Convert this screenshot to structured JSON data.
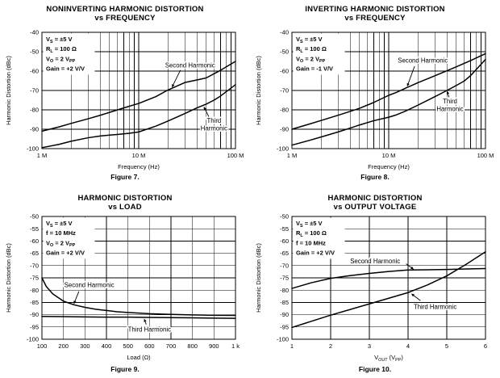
{
  "page": {
    "background": "#ffffff",
    "text_color": "#000000",
    "line_color": "#000000"
  },
  "chart_data": [
    {
      "type": "line",
      "title1": "NONINVERTING HARMONIC DISTORTION",
      "title2": "vs FREQUENCY",
      "caption": "Figure 7.",
      "ylabel": "Harmonic Distortion (dBc)",
      "xlabel": [
        {
          "t": "Frequency (Hz)"
        }
      ],
      "x_scale": "log",
      "x_min": 1000000.0,
      "x_max": 100000000.0,
      "x_ticks": [
        {
          "v": 1000000.0,
          "label": "1 M"
        },
        {
          "v": 10000000.0,
          "label": "10 M"
        },
        {
          "v": 100000000.0,
          "label": "100 M"
        }
      ],
      "y_min": -100,
      "y_max": -40,
      "y_ticks": [
        -40,
        -50,
        -60,
        -70,
        -80,
        -90,
        -100
      ],
      "grid": true,
      "conditions": [
        [
          {
            "t": "V"
          },
          {
            "t": "S",
            "sub": true
          },
          {
            "t": " = ±5 V"
          }
        ],
        [
          {
            "t": "R"
          },
          {
            "t": "L",
            "sub": true
          },
          {
            "t": " = 100 Ω"
          }
        ],
        [
          {
            "t": "V"
          },
          {
            "t": "O",
            "sub": true
          },
          {
            "t": " = 2 V"
          },
          {
            "t": "PP",
            "sub": true
          }
        ],
        [
          {
            "t": "Gain = +2 V/V"
          }
        ]
      ],
      "series": [
        {
          "name": "Second Harmonic",
          "points": [
            [
              1000000.0,
              -91
            ],
            [
              1500000.0,
              -88.8
            ],
            [
              2000000.0,
              -87
            ],
            [
              3000000.0,
              -84.6
            ],
            [
              4000000.0,
              -82.8
            ],
            [
              5000000.0,
              -81.3
            ],
            [
              7000000.0,
              -79
            ],
            [
              10000000.0,
              -76.7
            ],
            [
              15000000.0,
              -73.2
            ],
            [
              20000000.0,
              -69.8
            ],
            [
              30000000.0,
              -65.9
            ],
            [
              40000000.0,
              -64.6
            ],
            [
              50000000.0,
              -63.5
            ],
            [
              70000000.0,
              -59.6
            ],
            [
              100000000.0,
              -55
            ]
          ]
        },
        {
          "name": "Third Harmonic",
          "points": [
            [
              1000000.0,
              -99.5
            ],
            [
              1500000.0,
              -97.8
            ],
            [
              2000000.0,
              -96.2
            ],
            [
              3000000.0,
              -94.4
            ],
            [
              4000000.0,
              -93.5
            ],
            [
              5000000.0,
              -93
            ],
            [
              6000000.0,
              -92.7
            ],
            [
              8000000.0,
              -92.1
            ],
            [
              10000000.0,
              -91.4
            ],
            [
              15000000.0,
              -88.4
            ],
            [
              20000000.0,
              -85.8
            ],
            [
              30000000.0,
              -81.9
            ],
            [
              40000000.0,
              -79
            ],
            [
              50000000.0,
              -77
            ],
            [
              60000000.0,
              -75
            ],
            [
              70000000.0,
              -72.9
            ],
            [
              100000000.0,
              -67
            ]
          ]
        }
      ],
      "labels": [
        {
          "lines": [
            "Second Harmonic"
          ],
          "x": 34000000.0,
          "y": -57,
          "arrow": {
            "x1": 27000000.0,
            "y1": -59.5,
            "x2": 22000000.0,
            "y2": -68.5
          }
        },
        {
          "lines": [
            "Third",
            "Harmonic"
          ],
          "x": 60000000.0,
          "y": -87.5,
          "arrow": {
            "x1": 53000000.0,
            "y1": -83.5,
            "x2": 47000000.0,
            "y2": -78.3
          }
        }
      ]
    },
    {
      "type": "line",
      "title1": "INVERTING HARMONIC DISTORTION",
      "title2": "vs FREQUENCY",
      "caption": "Figure 8.",
      "ylabel": "Harmonic Distortion (dBc)",
      "xlabel": [
        {
          "t": "Frequency (Hz)"
        }
      ],
      "x_scale": "log",
      "x_min": 1000000.0,
      "x_max": 100000000.0,
      "x_ticks": [
        {
          "v": 1000000.0,
          "label": "1 M"
        },
        {
          "v": 10000000.0,
          "label": "10 M"
        },
        {
          "v": 100000000.0,
          "label": "100 M"
        }
      ],
      "y_min": -100,
      "y_max": -40,
      "y_ticks": [
        -40,
        -50,
        -60,
        -70,
        -80,
        -90,
        -100
      ],
      "grid": true,
      "conditions": [
        [
          {
            "t": "V"
          },
          {
            "t": "S",
            "sub": true
          },
          {
            "t": " = ±5 V"
          }
        ],
        [
          {
            "t": "R"
          },
          {
            "t": "L",
            "sub": true
          },
          {
            "t": " = 100 Ω"
          }
        ],
        [
          {
            "t": "V"
          },
          {
            "t": "O",
            "sub": true
          },
          {
            "t": " = 2 V"
          },
          {
            "t": "PP",
            "sub": true
          }
        ],
        [
          {
            "t": "Gain = -1 V/V"
          }
        ]
      ],
      "series": [
        {
          "name": "Second Harmonic",
          "points": [
            [
              1000000.0,
              -90
            ],
            [
              1500000.0,
              -87.4
            ],
            [
              2000000.0,
              -85.5
            ],
            [
              3000000.0,
              -82.8
            ],
            [
              4000000.0,
              -80.8
            ],
            [
              5000000.0,
              -79.2
            ],
            [
              7000000.0,
              -76.2
            ],
            [
              10000000.0,
              -72.5
            ],
            [
              12000000.0,
              -71
            ],
            [
              15000000.0,
              -68.8
            ],
            [
              20000000.0,
              -66
            ],
            [
              30000000.0,
              -62.4
            ],
            [
              40000000.0,
              -59.8
            ],
            [
              50000000.0,
              -57.8
            ],
            [
              70000000.0,
              -54.6
            ],
            [
              100000000.0,
              -51
            ]
          ]
        },
        {
          "name": "Third Harmonic",
          "points": [
            [
              1000000.0,
              -98.2
            ],
            [
              1500000.0,
              -95.8
            ],
            [
              2000000.0,
              -94
            ],
            [
              3000000.0,
              -91.4
            ],
            [
              4000000.0,
              -89.4
            ],
            [
              5000000.0,
              -87.8
            ],
            [
              7000000.0,
              -85.6
            ],
            [
              10000000.0,
              -83.8
            ],
            [
              12000000.0,
              -82.6
            ],
            [
              15000000.0,
              -80.6
            ],
            [
              20000000.0,
              -77.6
            ],
            [
              30000000.0,
              -73.2
            ],
            [
              40000000.0,
              -70
            ],
            [
              50000000.0,
              -67.4
            ],
            [
              60000000.0,
              -65.2
            ],
            [
              70000000.0,
              -62.4
            ],
            [
              100000000.0,
              -54
            ]
          ]
        }
      ],
      "labels": [
        {
          "lines": [
            "Second Harmonic"
          ],
          "x": 22500000.0,
          "y": -54.5,
          "arrow": {
            "x1": 18500000.0,
            "y1": -57.5,
            "x2": 15500000.0,
            "y2": -68
          }
        },
        {
          "lines": [
            "Third",
            "Harmonic"
          ],
          "x": 43000000.0,
          "y": -77.5,
          "arrow": {
            "x1": 42000000.0,
            "y1": -73.5,
            "x2": 40000000.0,
            "y2": -70.2
          }
        }
      ]
    },
    {
      "type": "line",
      "title1": "HARMONIC DISTORTION",
      "title2": "vs LOAD",
      "caption": "Figure 9.",
      "ylabel": "Harmonic Distortion (dBc)",
      "xlabel": [
        {
          "t": "Load (Ω)"
        }
      ],
      "x_scale": "linear",
      "x_min": 100,
      "x_max": 1000,
      "x_grid_step": 100,
      "x_ticks": [
        {
          "v": 100,
          "label": "100"
        },
        {
          "v": 200,
          "label": "200"
        },
        {
          "v": 300,
          "label": "300"
        },
        {
          "v": 400,
          "label": "400"
        },
        {
          "v": 500,
          "label": "500"
        },
        {
          "v": 600,
          "label": "600"
        },
        {
          "v": 700,
          "label": "700"
        },
        {
          "v": 800,
          "label": "800"
        },
        {
          "v": 900,
          "label": "900"
        },
        {
          "v": 1000,
          "label": "1 k"
        }
      ],
      "y_min": -100,
      "y_max": -50,
      "y_ticks": [
        -50,
        -55,
        -60,
        -65,
        -70,
        -75,
        -80,
        -85,
        -90,
        -95,
        -100
      ],
      "grid": true,
      "conditions": [
        [
          {
            "t": "V"
          },
          {
            "t": "S",
            "sub": true
          },
          {
            "t": " = ±5 V"
          }
        ],
        [
          {
            "t": "f = 10 MHz"
          }
        ],
        [
          {
            "t": "V"
          },
          {
            "t": "O",
            "sub": true
          },
          {
            "t": " = 2 V"
          },
          {
            "t": "PP",
            "sub": true
          }
        ],
        [
          {
            "t": "Gain = +2 V/V"
          }
        ]
      ],
      "series": [
        {
          "name": "Second Harmonic",
          "points": [
            [
              100,
              -75
            ],
            [
              120,
              -78.5
            ],
            [
              150,
              -81.5
            ],
            [
              200,
              -84.5
            ],
            [
              250,
              -86
            ],
            [
              300,
              -87
            ],
            [
              350,
              -87.8
            ],
            [
              400,
              -88.3
            ],
            [
              450,
              -88.8
            ],
            [
              500,
              -89.1
            ],
            [
              600,
              -89.6
            ],
            [
              700,
              -89.9
            ],
            [
              800,
              -90.1
            ],
            [
              900,
              -90.25
            ],
            [
              1000,
              -90.3
            ]
          ]
        },
        {
          "name": "Third Harmonic",
          "points": [
            [
              100,
              -90.7
            ],
            [
              200,
              -90.8
            ],
            [
              300,
              -90.9
            ],
            [
              400,
              -91
            ],
            [
              500,
              -91
            ],
            [
              600,
              -91.1
            ],
            [
              700,
              -91.2
            ],
            [
              800,
              -91.3
            ],
            [
              900,
              -91.4
            ],
            [
              1000,
              -91.5
            ]
          ]
        }
      ],
      "labels": [
        {
          "lines": [
            "Second Harmonic"
          ],
          "x": 320,
          "y": -78,
          "arrow": {
            "x1": 272,
            "y1": -80.5,
            "x2": 248,
            "y2": -85.7
          }
        },
        {
          "lines": [
            "Third Harmonic"
          ],
          "x": 600,
          "y": -96,
          "arrow": {
            "x1": 585,
            "y1": -94,
            "x2": 575,
            "y2": -91.6
          }
        }
      ]
    },
    {
      "type": "line",
      "title1": "HARMONIC DISTORTION",
      "title2": "vs OUTPUT VOLTAGE",
      "caption": "Figure 10.",
      "ylabel": "Harmonic Distortion (dBc)",
      "xlabel": [
        {
          "t": "V"
        },
        {
          "t": "OUT",
          "sub": true
        },
        {
          "t": " (V"
        },
        {
          "t": "PP",
          "sub": true
        },
        {
          "t": ")"
        }
      ],
      "x_scale": "linear",
      "x_min": 1,
      "x_max": 6,
      "x_grid_step": 1,
      "x_ticks": [
        {
          "v": 1,
          "label": "1"
        },
        {
          "v": 2,
          "label": "2"
        },
        {
          "v": 3,
          "label": "3"
        },
        {
          "v": 4,
          "label": "4"
        },
        {
          "v": 5,
          "label": "5"
        },
        {
          "v": 6,
          "label": "6"
        }
      ],
      "y_min": -100,
      "y_max": -50,
      "y_ticks": [
        -50,
        -55,
        -60,
        -65,
        -70,
        -75,
        -80,
        -85,
        -90,
        -95,
        -100
      ],
      "grid": true,
      "conditions": [
        [
          {
            "t": "V"
          },
          {
            "t": "S",
            "sub": true
          },
          {
            "t": " = ±5 V"
          }
        ],
        [
          {
            "t": "R"
          },
          {
            "t": "L",
            "sub": true
          },
          {
            "t": " = 100 Ω"
          }
        ],
        [
          {
            "t": "f = 10 MHz"
          }
        ],
        [
          {
            "t": "Gain = +2 V/V"
          }
        ]
      ],
      "series": [
        {
          "name": "Second Harmonic",
          "points": [
            [
              1,
              -79.3
            ],
            [
              1.5,
              -77
            ],
            [
              2,
              -75.2
            ],
            [
              2.5,
              -74.1
            ],
            [
              3,
              -73.2
            ],
            [
              3.5,
              -72.4
            ],
            [
              4,
              -71.8
            ],
            [
              4.5,
              -71.7
            ],
            [
              5,
              -71.6
            ],
            [
              5.5,
              -71.4
            ],
            [
              6,
              -71.2
            ]
          ]
        },
        {
          "name": "Third Harmonic",
          "points": [
            [
              1,
              -95.2
            ],
            [
              1.5,
              -92.7
            ],
            [
              2,
              -90.2
            ],
            [
              2.5,
              -87.9
            ],
            [
              3,
              -85.6
            ],
            [
              3.5,
              -83.3
            ],
            [
              4,
              -81
            ],
            [
              4.5,
              -77.9
            ],
            [
              5,
              -74.2
            ],
            [
              5.5,
              -69.5
            ],
            [
              6,
              -64.4
            ]
          ]
        }
      ],
      "labels": [
        {
          "lines": [
            "Second Harmonic"
          ],
          "x": 3.15,
          "y": -68.3,
          "arrow": {
            "x1": 3.95,
            "y1": -69.3,
            "x2": 4.15,
            "y2": -71.6
          }
        },
        {
          "lines": [
            "Third Harmonic"
          ],
          "x": 4.7,
          "y": -86.8,
          "arrow": {
            "x1": 4.32,
            "y1": -84.3,
            "x2": 4.08,
            "y2": -81.4
          }
        }
      ]
    }
  ]
}
